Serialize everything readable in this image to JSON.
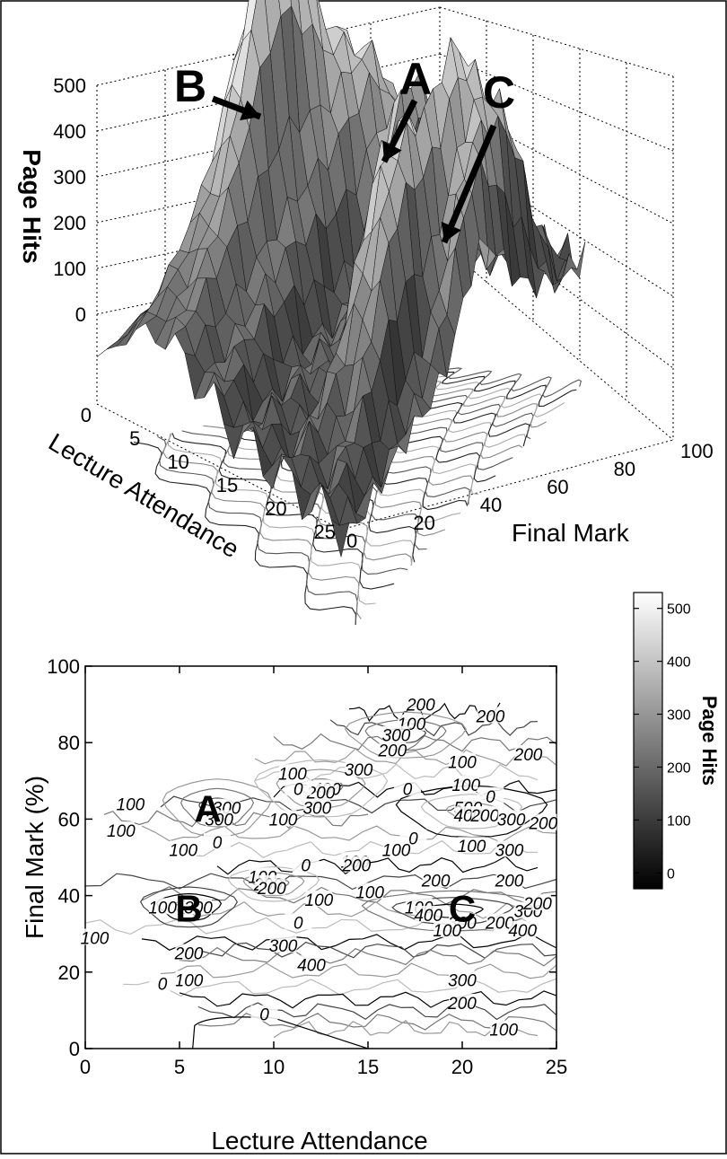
{
  "chart_data": [
    {
      "type": "surface",
      "xlabel": "Lecture Attendance",
      "ylabel": "Final Mark",
      "zlabel": "Page Hits",
      "x_ticks": [
        "0",
        "5",
        "10",
        "15",
        "20",
        "25"
      ],
      "y_ticks": [
        "0",
        "20",
        "40",
        "60",
        "80",
        "100"
      ],
      "z_ticks": [
        "0",
        "100",
        "200",
        "300",
        "400",
        "500"
      ],
      "xlim": [
        0,
        25
      ],
      "ylim": [
        0,
        100
      ],
      "zlim": [
        0,
        500
      ],
      "grid": true,
      "annotations": [
        {
          "label": "B",
          "x": 5,
          "y": 37,
          "z": 420
        },
        {
          "label": "A",
          "x": 7,
          "y": 63,
          "z": 350
        },
        {
          "label": "C",
          "x": 20,
          "y": 38,
          "z": 180
        }
      ]
    },
    {
      "type": "contour",
      "xlabel": "Lecture Attendance",
      "ylabel": "Final Mark (%)",
      "x_ticks": [
        "0",
        "5",
        "10",
        "15",
        "20",
        "25"
      ],
      "y_ticks": [
        "0",
        "20",
        "40",
        "60",
        "80",
        "100"
      ],
      "xlim": [
        0,
        25
      ],
      "ylim": [
        0,
        100
      ],
      "contour_levels": [
        0,
        100,
        200,
        300,
        400,
        500
      ],
      "annotations": [
        {
          "label": "A",
          "x": 6.5,
          "y": 63
        },
        {
          "label": "B",
          "x": 5.5,
          "y": 37
        },
        {
          "label": "C",
          "x": 20,
          "y": 37
        }
      ],
      "contour_labels": [
        {
          "text": "200",
          "x": 17.8,
          "y": 90
        },
        {
          "text": "200",
          "x": 21.5,
          "y": 87
        },
        {
          "text": "100",
          "x": 17.3,
          "y": 85
        },
        {
          "text": "300",
          "x": 16.5,
          "y": 82
        },
        {
          "text": "200",
          "x": 16.3,
          "y": 78
        },
        {
          "text": "100",
          "x": 20.0,
          "y": 75
        },
        {
          "text": "200",
          "x": 23.5,
          "y": 77
        },
        {
          "text": "100",
          "x": 11.0,
          "y": 72
        },
        {
          "text": "300",
          "x": 14.5,
          "y": 73
        },
        {
          "text": "400",
          "x": 12.8,
          "y": 68
        },
        {
          "text": "200",
          "x": 12.5,
          "y": 67
        },
        {
          "text": "0",
          "x": 11.3,
          "y": 68
        },
        {
          "text": "0",
          "x": 17.1,
          "y": 68
        },
        {
          "text": "100",
          "x": 20.2,
          "y": 69
        },
        {
          "text": "0",
          "x": 21.5,
          "y": 66
        },
        {
          "text": "500",
          "x": 20.3,
          "y": 63
        },
        {
          "text": "400",
          "x": 20.3,
          "y": 61
        },
        {
          "text": "200",
          "x": 21.2,
          "y": 61
        },
        {
          "text": "300",
          "x": 22.6,
          "y": 60
        },
        {
          "text": "200",
          "x": 24.3,
          "y": 59
        },
        {
          "text": "300",
          "x": 22.5,
          "y": 52
        },
        {
          "text": "100",
          "x": 20.5,
          "y": 53
        },
        {
          "text": "100",
          "x": 2.4,
          "y": 64
        },
        {
          "text": "300",
          "x": 7.5,
          "y": 63
        },
        {
          "text": "300",
          "x": 7.1,
          "y": 60
        },
        {
          "text": "300",
          "x": 12.3,
          "y": 63
        },
        {
          "text": "100",
          "x": 10.5,
          "y": 60
        },
        {
          "text": "100",
          "x": 1.9,
          "y": 57
        },
        {
          "text": "100",
          "x": 5.2,
          "y": 52
        },
        {
          "text": "0",
          "x": 7.0,
          "y": 54
        },
        {
          "text": "0",
          "x": 17.4,
          "y": 55
        },
        {
          "text": "100",
          "x": 16.5,
          "y": 52
        },
        {
          "text": "100",
          "x": 14.3,
          "y": 49
        },
        {
          "text": "0",
          "x": 11.7,
          "y": 48
        },
        {
          "text": "200",
          "x": 14.4,
          "y": 48
        },
        {
          "text": "100",
          "x": 9.4,
          "y": 45
        },
        {
          "text": "200",
          "x": 9.7,
          "y": 43
        },
        {
          "text": "200",
          "x": 9.9,
          "y": 42
        },
        {
          "text": "200",
          "x": 18.6,
          "y": 44
        },
        {
          "text": "200",
          "x": 22.5,
          "y": 44
        },
        {
          "text": "100",
          "x": 15.1,
          "y": 41
        },
        {
          "text": "100",
          "x": 17.7,
          "y": 37
        },
        {
          "text": "100",
          "x": 12.4,
          "y": 39
        },
        {
          "text": "0",
          "x": 11.3,
          "y": 33
        },
        {
          "text": "400",
          "x": 18.2,
          "y": 35
        },
        {
          "text": "300",
          "x": 20.0,
          "y": 33
        },
        {
          "text": "200",
          "x": 22.0,
          "y": 33
        },
        {
          "text": "300",
          "x": 23.5,
          "y": 36
        },
        {
          "text": "200",
          "x": 24.0,
          "y": 38
        },
        {
          "text": "100",
          "x": 19.2,
          "y": 31
        },
        {
          "text": "400",
          "x": 23.2,
          "y": 31
        },
        {
          "text": "100",
          "x": 4.1,
          "y": 37
        },
        {
          "text": "300",
          "x": 6.0,
          "y": 37
        },
        {
          "text": "100",
          "x": 0.5,
          "y": 29
        },
        {
          "text": "200",
          "x": 5.5,
          "y": 25
        },
        {
          "text": "300",
          "x": 10.5,
          "y": 27
        },
        {
          "text": "400",
          "x": 12.0,
          "y": 22
        },
        {
          "text": "100",
          "x": 5.5,
          "y": 18
        },
        {
          "text": "0",
          "x": 4.1,
          "y": 17
        },
        {
          "text": "300",
          "x": 20.0,
          "y": 18
        },
        {
          "text": "200",
          "x": 20.0,
          "y": 12
        },
        {
          "text": "0",
          "x": 9.5,
          "y": 9
        },
        {
          "text": "100",
          "x": 22.2,
          "y": 5
        }
      ]
    },
    {
      "type": "colorbar",
      "label": "Page Hits",
      "ticks": [
        "0",
        "100",
        "200",
        "300",
        "400",
        "500"
      ],
      "range": [
        -30,
        530
      ]
    }
  ]
}
